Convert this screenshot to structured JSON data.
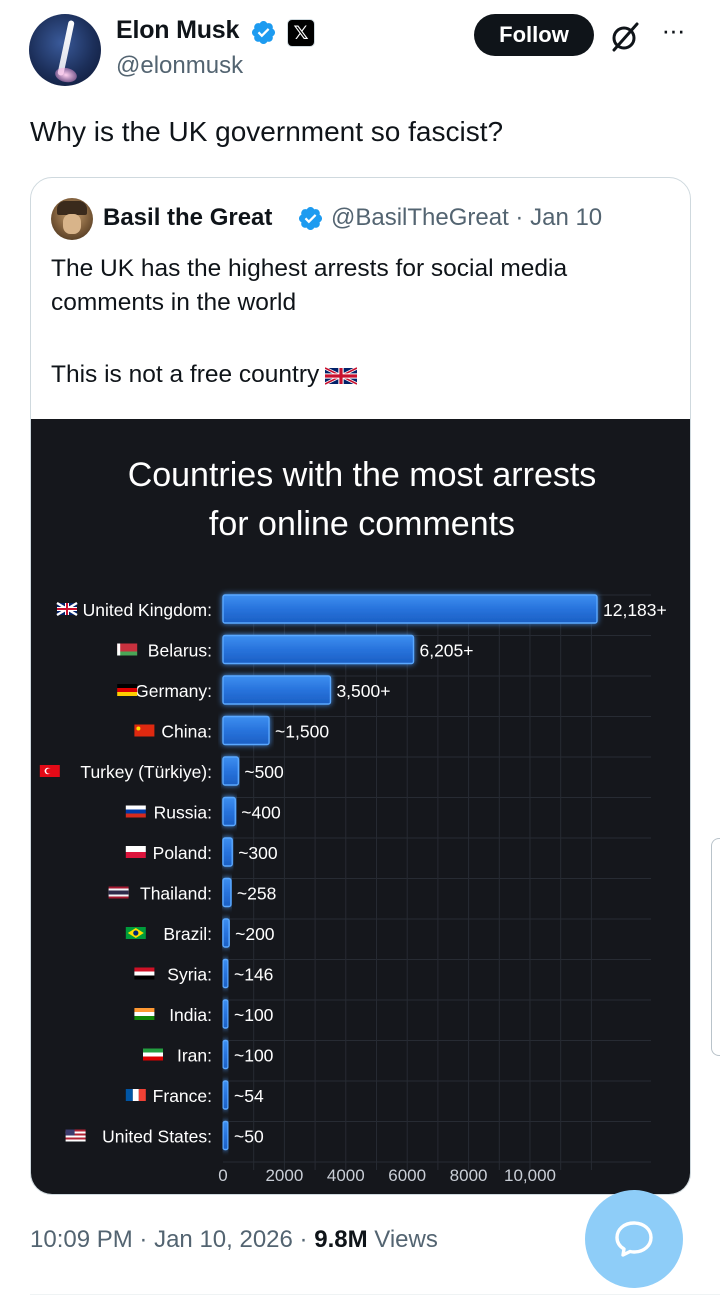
{
  "author": {
    "name": "Elon Musk",
    "handle": "@elonmusk",
    "follow_label": "Follow"
  },
  "tweet": {
    "text": "Why is the UK government so fascist?",
    "time": "10:09 PM",
    "date": "Jan 10, 2026",
    "views_count": "9.8M",
    "views_label": "Views",
    "separator": "·"
  },
  "quote": {
    "name": "Basil the Great",
    "handle_date": "@BasilTheGreat · Jan 10",
    "line1": "The UK has the highest arrests for social media comments in the world",
    "line2": "This is not a free country"
  },
  "colors": {
    "accent": "#1d9bf0",
    "bar": "#2f7fe6",
    "chart_bg": "#15171c",
    "fab": "#8ecdf8"
  },
  "chart_data": {
    "type": "bar",
    "orientation": "horizontal",
    "title_lines": [
      "Countries with the most arrests",
      "for online comments"
    ],
    "categories": [
      "United Kingdom:",
      "Belarus:",
      "Germany:",
      "China:",
      "Turkey (Türkiye):",
      "Russia:",
      "Poland:",
      "Thailand:",
      "Brazil:",
      "Syria:",
      "India:",
      "Iran:",
      "France:",
      "United States:"
    ],
    "values": [
      12183,
      6205,
      3500,
      1500,
      500,
      400,
      300,
      258,
      200,
      146,
      100,
      100,
      54,
      50
    ],
    "value_labels": [
      "12,183+",
      "6,205+",
      "3,500+",
      "~1,500",
      "~500",
      "~400",
      "~300",
      "~258",
      "~200",
      "~146",
      "~100",
      "~100",
      "~54",
      "~50"
    ],
    "x_ticks": [
      0,
      2000,
      4000,
      6000,
      8000,
      10000
    ],
    "x_tick_labels": [
      "0",
      "2000",
      "4000",
      "6000",
      "8000",
      "10,000"
    ],
    "xlim": [
      0,
      12183
    ],
    "grid": true,
    "flags": [
      "uk",
      "belarus",
      "germany",
      "china",
      "turkey",
      "russia",
      "poland",
      "thailand",
      "brazil",
      "syria",
      "india",
      "iran",
      "france",
      "usa"
    ]
  }
}
